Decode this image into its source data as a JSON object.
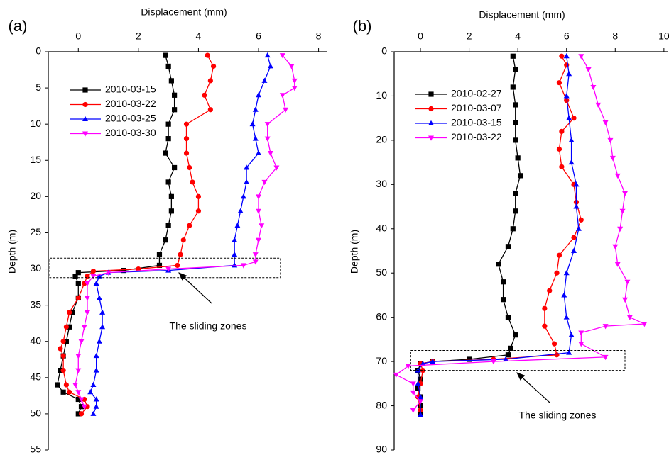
{
  "chart_data": [
    {
      "type": "line",
      "panel_label": "(a)",
      "x_label": "Displacement (mm)",
      "y_label": "Depth (m)",
      "annotation": "The sliding zones",
      "xlim": [
        -1.0,
        8.27
      ],
      "ylim": [
        0,
        55
      ],
      "y_inverted": true,
      "xticks": [
        0,
        2,
        4,
        6,
        8
      ],
      "yticks": [
        0,
        5,
        10,
        15,
        20,
        25,
        30,
        35,
        40,
        45,
        50,
        55
      ],
      "legend": "upper left",
      "zone_box": {
        "x": [
          -0.95,
          6.73
        ],
        "y": [
          28.5,
          31.2
        ]
      },
      "series": [
        {
          "name": "2010-03-15",
          "color": "#000000",
          "marker": "square",
          "x": [
            2.9,
            3.0,
            3.1,
            3.2,
            3.2,
            3.0,
            3.0,
            2.9,
            3.2,
            3.0,
            3.1,
            3.1,
            3.0,
            2.9,
            2.7,
            2.7,
            1.5,
            0.0,
            -0.1,
            0.0,
            0.0,
            -0.2,
            -0.3,
            -0.4,
            -0.5,
            -0.6,
            -0.7,
            -0.5,
            0.0,
            0.1,
            0.0
          ],
          "y": [
            0.5,
            2,
            4,
            6,
            8,
            10,
            12,
            14,
            16,
            18,
            20,
            22,
            24,
            26,
            28,
            29.5,
            30.2,
            30.5,
            31,
            32,
            34,
            36,
            38,
            40,
            42,
            44,
            46,
            47,
            48,
            49,
            50
          ]
        },
        {
          "name": "2010-03-22",
          "color": "#ff0000",
          "marker": "circle",
          "x": [
            4.3,
            4.5,
            4.4,
            4.2,
            4.4,
            3.6,
            3.6,
            3.6,
            3.7,
            3.8,
            4.0,
            4.0,
            3.7,
            3.5,
            3.4,
            3.3,
            2.0,
            0.5,
            0.3,
            0.2,
            0.0,
            -0.3,
            -0.4,
            -0.5,
            -0.6,
            -0.5,
            -0.5,
            -0.4,
            -0.3,
            0.2,
            0.3,
            0.1
          ],
          "y": [
            0.5,
            2,
            4,
            6,
            8,
            10,
            12,
            14,
            16,
            18,
            20,
            22,
            24,
            26,
            28,
            29.5,
            30,
            30.3,
            31,
            32,
            34,
            36,
            38,
            40,
            41,
            42,
            44,
            46,
            47,
            48,
            49,
            50
          ]
        },
        {
          "name": "2010-03-25",
          "color": "#0000ff",
          "marker": "triangle-up",
          "x": [
            6.3,
            6.4,
            6.2,
            6.0,
            5.9,
            5.8,
            5.9,
            6.0,
            5.6,
            5.6,
            5.5,
            5.4,
            5.3,
            5.2,
            5.2,
            5.2,
            3.0,
            1.0,
            0.7,
            0.6,
            0.7,
            0.8,
            0.8,
            0.7,
            0.6,
            0.6,
            0.5,
            0.4,
            0.6,
            0.6,
            0.5
          ],
          "y": [
            0.5,
            2,
            4,
            6,
            8,
            10,
            12,
            14,
            16,
            18,
            20,
            22,
            24,
            26,
            28,
            29.5,
            30.2,
            30.5,
            31,
            32,
            34,
            36,
            38,
            40,
            42,
            44,
            46,
            47,
            48,
            49,
            50
          ]
        },
        {
          "name": "2010-03-30",
          "color": "#ff00ff",
          "marker": "triangle-down",
          "x": [
            6.8,
            7.1,
            7.2,
            7.2,
            6.8,
            6.9,
            6.3,
            6.3,
            6.4,
            6.6,
            6.2,
            6.0,
            6.0,
            6.1,
            6.0,
            5.9,
            5.9,
            5.5,
            3.0,
            1.0,
            0.5,
            0.3,
            0.3,
            0.3,
            0.2,
            0.1,
            0.0,
            0.0,
            -0.1,
            0.0,
            0.1,
            0.2
          ],
          "y": [
            0.5,
            2,
            4,
            5,
            6,
            8,
            10,
            12,
            14,
            16,
            18,
            20,
            22,
            24,
            26,
            28,
            29,
            29.5,
            30,
            30.5,
            31,
            32,
            34,
            36,
            38,
            40,
            42,
            44,
            46,
            47,
            48,
            49
          ]
        }
      ]
    },
    {
      "type": "line",
      "panel_label": "(b)",
      "x_label": "Displacement (mm)",
      "y_label": "Depth (m)",
      "annotation": "The sliding zones",
      "xlim": [
        -1.08,
        10.15
      ],
      "ylim": [
        0,
        90
      ],
      "y_inverted": true,
      "xticks": [
        0,
        2,
        4,
        6,
        8,
        10
      ],
      "yticks": [
        0,
        10,
        20,
        30,
        40,
        50,
        60,
        70,
        80,
        90
      ],
      "legend": "upper left",
      "zone_box": {
        "x": [
          -0.4,
          8.4
        ],
        "y": [
          67.5,
          72
        ]
      },
      "series": [
        {
          "name": "2010-02-27",
          "color": "#000000",
          "marker": "square",
          "x": [
            3.8,
            3.9,
            3.8,
            3.9,
            3.9,
            3.9,
            4.0,
            4.1,
            3.9,
            3.9,
            3.8,
            3.6,
            3.2,
            3.4,
            3.4,
            3.6,
            3.9,
            3.7,
            3.6,
            2.0,
            0.5,
            0.0,
            -0.1,
            0.0,
            -0.1,
            0.0,
            0.0,
            0.0
          ],
          "y": [
            1,
            4,
            8,
            12,
            16,
            20,
            24,
            28,
            32,
            36,
            40,
            44,
            48,
            52,
            56,
            60,
            64,
            67,
            68.5,
            69.5,
            70,
            70.5,
            72,
            74,
            76,
            78,
            80,
            82
          ]
        },
        {
          "name": "2010-03-07",
          "color": "#ff0000",
          "marker": "circle",
          "x": [
            5.8,
            6.0,
            5.7,
            6.0,
            6.3,
            5.8,
            5.7,
            5.8,
            6.3,
            6.4,
            6.6,
            6.3,
            5.7,
            5.6,
            5.3,
            5.1,
            5.1,
            5.5,
            5.6,
            3.0,
            0.5,
            0.0,
            0.1,
            0.0,
            -0.1,
            0.0
          ],
          "y": [
            1,
            3,
            7,
            11,
            15,
            18,
            22,
            26,
            30,
            34,
            38,
            42,
            46,
            50,
            54,
            58,
            62,
            66,
            68.5,
            69.5,
            70,
            70.5,
            72,
            75,
            78,
            81
          ]
        },
        {
          "name": "2010-03-15",
          "color": "#0000ff",
          "marker": "triangle-up",
          "x": [
            6.0,
            6.1,
            6.0,
            6.1,
            6.2,
            6.2,
            6.4,
            6.4,
            6.5,
            6.3,
            6.0,
            5.9,
            6.0,
            6.2,
            6.1,
            3.5,
            0.5,
            0.1,
            -0.1,
            -0.1,
            0.0,
            0.0
          ],
          "y": [
            1,
            5,
            10,
            15,
            20,
            25,
            30,
            35,
            40,
            45,
            50,
            55,
            60,
            64,
            68,
            69.5,
            70,
            70.5,
            72,
            75,
            78,
            82
          ]
        },
        {
          "name": "2010-03-22",
          "color": "#ff00ff",
          "marker": "triangle-down",
          "x": [
            6.6,
            6.9,
            7.1,
            7.3,
            7.6,
            7.8,
            7.9,
            8.1,
            8.4,
            8.3,
            8.2,
            8.0,
            8.1,
            8.5,
            8.4,
            8.6,
            9.2,
            7.6,
            6.6,
            6.6,
            7.6,
            3.0,
            -0.5,
            -1.0,
            -0.3,
            -0.3,
            0.0,
            -0.3
          ],
          "y": [
            1,
            4,
            8,
            12,
            16,
            20,
            24,
            28,
            32,
            36,
            40,
            44,
            48,
            52,
            56,
            60,
            61.5,
            62,
            63.5,
            66,
            69,
            70,
            71,
            73,
            75,
            77,
            79,
            81
          ]
        }
      ]
    }
  ]
}
